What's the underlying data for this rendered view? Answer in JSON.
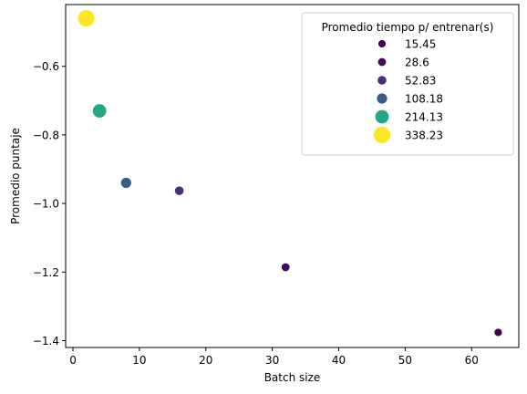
{
  "chart_data": {
    "type": "scatter",
    "title": "",
    "xlabel": "Batch size",
    "ylabel": "Promedio puntaje",
    "xlim": [
      -1.1,
      67.1
    ],
    "ylim": [
      -1.42,
      -0.42
    ],
    "xticks": [
      0,
      10,
      20,
      30,
      40,
      50,
      60
    ],
    "yticks": [
      -1.4,
      -1.2,
      -1.0,
      -0.8,
      -0.6
    ],
    "xtick_labels": [
      "0",
      "10",
      "20",
      "30",
      "40",
      "50",
      "60"
    ],
    "ytick_labels": [
      "−1.4",
      "−1.2",
      "−1.0",
      "−0.8",
      "−0.6"
    ],
    "grid": false,
    "legend": {
      "title": "Promedio tiempo p/ entrenar(s)",
      "placement": "top-right",
      "entries": [
        {
          "label": "15.45",
          "color": "#440154",
          "size_rank": 1
        },
        {
          "label": "28.6",
          "color": "#46085c",
          "size_rank": 2
        },
        {
          "label": "52.83",
          "color": "#472f7d",
          "size_rank": 3
        },
        {
          "label": "108.18",
          "color": "#365c8d",
          "size_rank": 4
        },
        {
          "label": "214.13",
          "color": "#22a884",
          "size_rank": 5
        },
        {
          "label": "338.23",
          "color": "#fde725",
          "size_rank": 6
        }
      ]
    },
    "points": [
      {
        "x": 2,
        "y": -0.46,
        "time": 338.23,
        "color": "#fde725",
        "size_rank": 6
      },
      {
        "x": 4,
        "y": -0.73,
        "time": 214.13,
        "color": "#22a884",
        "size_rank": 5
      },
      {
        "x": 8,
        "y": -0.94,
        "time": 108.18,
        "color": "#365c8d",
        "size_rank": 4
      },
      {
        "x": 16,
        "y": -0.963,
        "time": 52.83,
        "color": "#472f7d",
        "size_rank": 3
      },
      {
        "x": 32,
        "y": -1.186,
        "time": 28.6,
        "color": "#46085c",
        "size_rank": 2
      },
      {
        "x": 64,
        "y": -1.376,
        "time": 15.45,
        "color": "#440154",
        "size_rank": 1
      }
    ]
  }
}
